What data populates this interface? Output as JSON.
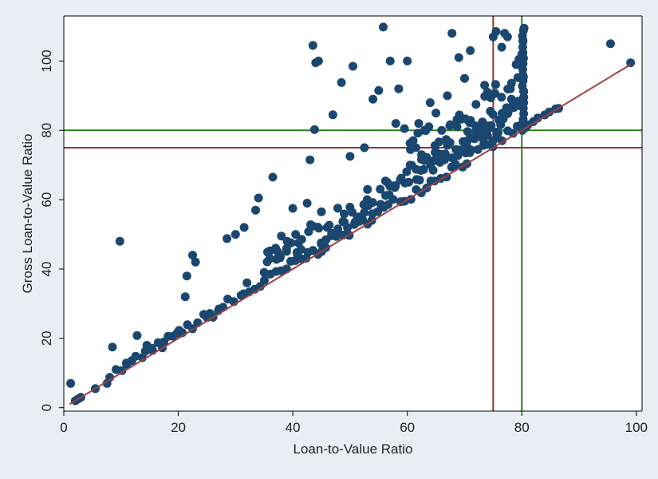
{
  "chart_data": {
    "type": "scatter",
    "title": "",
    "xlabel": "Loan-to-Value Ratio",
    "ylabel": "Gross Loan-to-Value Ratio",
    "xlim": [
      0,
      101
    ],
    "ylim": [
      -1,
      113
    ],
    "xticks": [
      0,
      20,
      40,
      60,
      80,
      100
    ],
    "yticks": [
      0,
      20,
      40,
      60,
      80,
      100
    ],
    "grid": false,
    "legend": "none",
    "colors": {
      "marker": "#1a476f",
      "fit_line": "#a0403c",
      "ref_75": "#90353b",
      "ref_80": "#2f7d1e",
      "plot_background": "#ffffff",
      "figure_background": "#e8eef3"
    },
    "reference_lines": [
      {
        "orientation": "horizontal",
        "value": 80,
        "color": "#2f7d1e"
      },
      {
        "orientation": "horizontal",
        "value": 75,
        "color": "#90353b"
      },
      {
        "orientation": "vertical",
        "value": 75,
        "color": "#90353b"
      },
      {
        "orientation": "vertical",
        "value": 80,
        "color": "#2f7d1e"
      }
    ],
    "fit_line": {
      "x": [
        1,
        99
      ],
      "y": [
        1,
        99
      ]
    },
    "points": {
      "x": [
        1.2,
        2.0,
        2.5,
        3.0,
        5.5,
        8.5,
        9.8,
        12.8,
        14.5,
        19.8,
        21.5,
        22.5,
        23.0,
        21.2,
        28.5,
        30.0,
        31.5,
        34.0,
        33.5,
        36.5,
        38.0,
        40.0,
        40.5,
        42.5,
        43.0,
        43.5,
        44.0,
        44.5,
        43.8,
        47.0,
        48.5,
        50.0,
        50.5,
        52.5,
        54.0,
        55.0,
        55.8,
        57.0,
        58.0,
        59.5,
        60.0,
        58.5,
        61.5,
        62.0,
        63.0,
        64.0,
        65.0,
        66.0,
        67.0,
        67.8,
        69.0,
        70.0,
        71.0,
        72.0,
        73.5,
        74.0,
        75.0,
        75.5,
        76.5,
        77.0,
        77.5,
        78.0,
        79.0,
        79.5,
        80.0,
        80.2,
        80.4,
        95.5,
        99.0,
        45.0,
        46.0,
        49.0,
        51.5,
        53.0,
        56.5,
        57.5,
        60.5,
        62.5,
        64.5,
        66.5,
        68.5,
        70.5,
        72.5,
        74.5,
        76.0,
        78.5,
        37.0,
        39.0,
        41.0,
        35.0,
        32.0,
        25.0,
        27.0,
        17.5,
        15.5,
        11.0
      ],
      "y": [
        7.0,
        2.0,
        2.5,
        3.0,
        5.5,
        17.5,
        48.0,
        20.8,
        18.0,
        21.5,
        38.0,
        44.0,
        42.0,
        32.0,
        48.8,
        50.0,
        52.0,
        60.5,
        57.0,
        66.5,
        49.5,
        57.5,
        50.0,
        59.0,
        71.5,
        104.5,
        99.5,
        100.0,
        80.2,
        84.5,
        93.8,
        72.5,
        98.5,
        75.0,
        89.0,
        91.5,
        109.8,
        100.0,
        82.0,
        80.5,
        100.0,
        92.0,
        75.0,
        82.0,
        80.0,
        88.0,
        85.0,
        80.0,
        90.0,
        108.0,
        101.0,
        95.0,
        103.0,
        87.5,
        93.0,
        91.0,
        107.0,
        108.5,
        104.0,
        108.0,
        107.0,
        92.0,
        99.0,
        100.5,
        102.0,
        106.0,
        109.5,
        105.0,
        99.5,
        56.5,
        52.0,
        53.5,
        55.0,
        60.0,
        65.0,
        64.0,
        70.0,
        73.0,
        68.5,
        71.5,
        74.5,
        77.0,
        79.0,
        85.5,
        83.0,
        88.0,
        46.0,
        48.0,
        47.5,
        39.0,
        36.0,
        26.0,
        28.0,
        19.0,
        16.5,
        12.5
      ]
    },
    "dense_band": [
      {
        "x_from": 7,
        "x_to": 81,
        "y_above_min": 0,
        "y_above_max": 3
      },
      {
        "x_from": 35,
        "x_to": 80,
        "y_above_min": 2,
        "y_above_max": 10
      },
      {
        "x_from": 60,
        "x_to": 80,
        "y_above_min": 5,
        "y_above_max": 18
      },
      {
        "x_from": 80,
        "x_to": 87,
        "y_above_min": 0,
        "y_above_max": 1
      }
    ],
    "column_at_80": {
      "x": 80.2,
      "y_from": 80,
      "y_to": 110
    }
  }
}
